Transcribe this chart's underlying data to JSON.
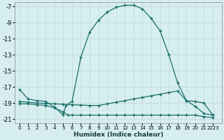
{
  "xlabel": "Humidex (Indice chaleur)",
  "bg_color": "#d6eef0",
  "grid_color": "#c0d8da",
  "line_color": "#1a6e6a",
  "xlim": [
    -0.5,
    23
  ],
  "ylim": [
    -21.5,
    -6.5
  ],
  "yticks": [
    -7,
    -9,
    -11,
    -13,
    -15,
    -17,
    -19,
    -21
  ],
  "xtick_positions": [
    0,
    1,
    2,
    3,
    4,
    5,
    6,
    7,
    8,
    9,
    10,
    11,
    12,
    13,
    14,
    15,
    16,
    17,
    18,
    19,
    20,
    21,
    22
  ],
  "xtick_labels": [
    "0",
    "1",
    "2",
    "3",
    "4",
    "5",
    "6",
    "7",
    "8",
    "9",
    "10",
    "11",
    "12",
    "13",
    "14",
    "15",
    "16",
    "17",
    "18",
    "19",
    "20",
    "21",
    "2223"
  ],
  "curve1_x": [
    0,
    1,
    2,
    3,
    4,
    5,
    5.3,
    6,
    7,
    8,
    9,
    10,
    11,
    12,
    13,
    14,
    15,
    16,
    17,
    18,
    19,
    20,
    21,
    22
  ],
  "curve1_y": [
    -17.3,
    -18.5,
    -18.7,
    -18.8,
    -19.5,
    -20.5,
    -19.3,
    -18.8,
    -13.3,
    -10.2,
    -8.7,
    -7.7,
    -7.1,
    -6.85,
    -6.85,
    -7.3,
    -8.5,
    -10.0,
    -13.0,
    -16.5,
    -18.7,
    -19.4,
    -20.3,
    -20.5
  ],
  "curve2_x": [
    0,
    1,
    2,
    3,
    4,
    5,
    6,
    7,
    8,
    9,
    10,
    11,
    12,
    13,
    14,
    15,
    16,
    17,
    18,
    19,
    20,
    21,
    22
  ],
  "curve2_y": [
    -18.8,
    -18.9,
    -19.0,
    -19.05,
    -19.1,
    -19.15,
    -19.2,
    -19.25,
    -19.3,
    -19.3,
    -19.1,
    -18.9,
    -18.7,
    -18.5,
    -18.3,
    -18.1,
    -17.9,
    -17.7,
    -17.5,
    -18.7,
    -18.8,
    -19.0,
    -20.5
  ],
  "curve3_x": [
    0,
    1,
    2,
    3,
    4,
    5,
    5.5,
    6,
    7,
    8,
    9,
    10,
    11,
    12,
    13,
    14,
    15,
    16,
    17,
    18,
    19,
    20,
    21,
    22
  ],
  "curve3_y": [
    -19.1,
    -19.1,
    -19.2,
    -19.3,
    -19.6,
    -20.1,
    -20.5,
    -20.5,
    -20.5,
    -20.5,
    -20.5,
    -20.5,
    -20.5,
    -20.5,
    -20.5,
    -20.5,
    -20.5,
    -20.5,
    -20.5,
    -20.5,
    -20.5,
    -20.5,
    -20.7,
    -20.8
  ]
}
